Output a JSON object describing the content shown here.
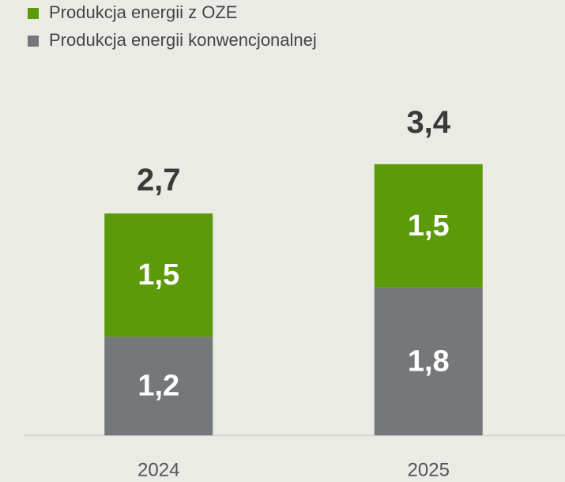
{
  "chart_data": {
    "type": "stacked_bar",
    "categories": [
      "2024",
      "2025"
    ],
    "series": [
      {
        "name": "Produkcja energii z OZE",
        "color": "#5c9a0a",
        "values": [
          1.5,
          1.5
        ],
        "value_labels": [
          "1,5",
          "1,5"
        ]
      },
      {
        "name": "Produkcja energii konwencjonalnej",
        "color": "#75787b",
        "values": [
          1.2,
          1.8
        ],
        "value_labels": [
          "1,2",
          "1,8"
        ]
      }
    ],
    "totals": [
      2.7,
      3.4
    ],
    "total_labels": [
      "2,7",
      "3,4"
    ],
    "ylim": [
      0,
      5
    ]
  }
}
